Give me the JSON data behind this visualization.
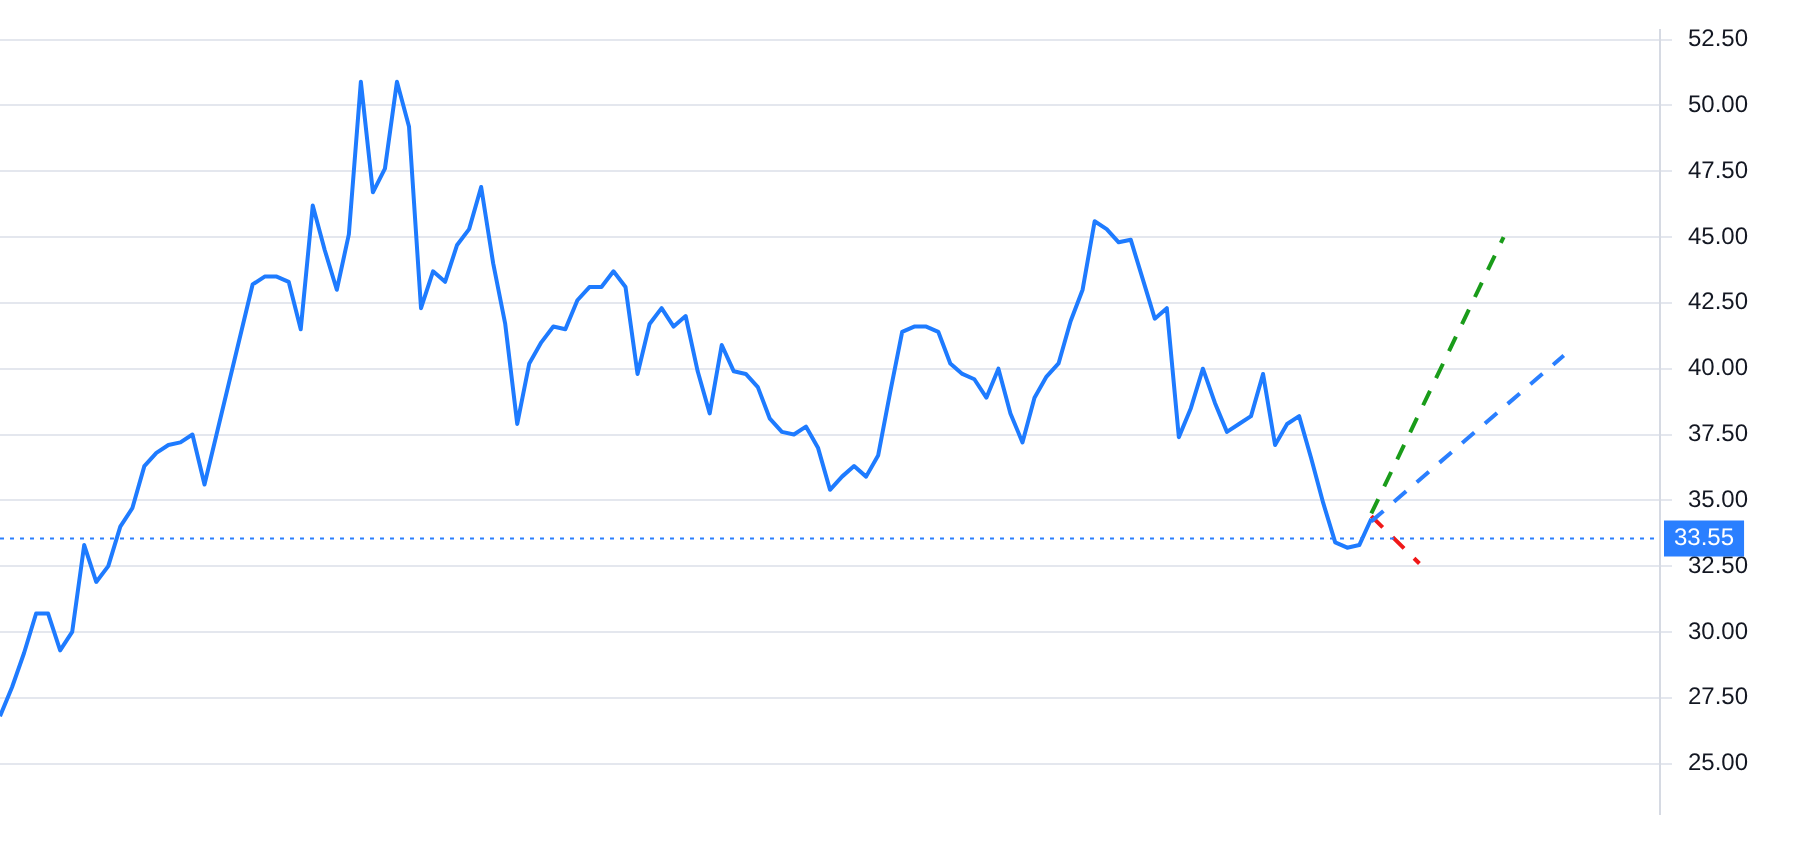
{
  "chart_data": {
    "type": "line",
    "ylim": [
      23.1,
      52.85
    ],
    "categories": [
      null,
      null,
      null,
      null,
      null,
      null,
      null,
      null,
      null,
      null,
      null,
      null,
      null,
      null,
      null,
      null,
      null,
      null,
      null,
      null,
      null,
      null,
      null,
      null,
      null,
      null,
      null,
      null,
      null,
      null,
      null,
      null,
      null,
      null,
      null,
      null,
      null,
      null,
      null,
      null,
      null,
      null,
      null,
      null,
      null,
      null,
      null,
      null,
      null,
      null,
      null,
      null,
      null,
      null,
      null,
      null,
      null,
      null,
      null,
      null,
      null,
      null,
      null,
      null,
      null,
      null,
      null,
      null,
      null,
      null,
      null,
      null,
      null,
      null,
      null,
      null,
      null,
      null,
      null,
      null,
      null,
      null,
      null,
      null,
      null,
      null,
      null,
      null,
      null,
      null,
      null,
      null,
      null,
      null,
      null,
      null,
      null,
      null,
      null,
      null,
      null,
      null,
      null,
      null,
      null,
      null,
      null,
      null,
      null,
      null,
      null,
      null,
      null,
      null,
      null,
      null,
      null,
      null,
      null,
      null,
      null,
      null,
      null,
      null,
      null,
      null,
      null,
      null,
      null,
      null,
      null,
      null,
      null,
      null,
      null,
      null,
      null,
      null,
      null
    ],
    "yticks": [
      {
        "value": 25,
        "label": "25.00"
      },
      {
        "value": 27.5,
        "label": "27.50"
      },
      {
        "value": 30,
        "label": "30.00"
      },
      {
        "value": 32.5,
        "label": "32.50"
      },
      {
        "value": 35,
        "label": "35.00"
      },
      {
        "value": 37.5,
        "label": "37.50"
      },
      {
        "value": 40,
        "label": "40.00"
      },
      {
        "value": 42.5,
        "label": "42.50"
      },
      {
        "value": 45,
        "label": "45.00"
      },
      {
        "value": 47.5,
        "label": "47.50"
      },
      {
        "value": 50,
        "label": "50.00"
      },
      {
        "value": 52.5,
        "label": "52.50"
      }
    ],
    "tick_labels": "y",
    "grid": "y",
    "legend": false,
    "marker": "none",
    "ref_lines": [
      {
        "axis": "y",
        "value": 33.55,
        "label": "33.55",
        "color": "#2a7fff",
        "line_style": "dotted"
      }
    ],
    "series": [
      {
        "color": "#1e7bff",
        "line_style": "solid",
        "values": [
          26.8,
          27.9,
          29.2,
          30.7,
          30.7,
          29.3,
          30.0,
          33.3,
          31.9,
          32.5,
          34.0,
          34.7,
          36.3,
          36.8,
          37.1,
          37.2,
          37.5,
          35.6,
          37.5,
          39.4,
          41.3,
          43.2,
          43.5,
          43.5,
          43.3,
          41.5,
          46.2,
          44.5,
          43.0,
          45.1,
          50.9,
          46.7,
          47.6,
          50.9,
          49.2,
          42.3,
          43.7,
          43.3,
          44.7,
          45.3,
          46.9,
          44.0,
          41.7,
          37.9,
          40.2,
          41.0,
          41.6,
          41.5,
          42.6,
          43.1,
          43.1,
          43.7,
          43.1,
          39.8,
          41.7,
          42.3,
          41.6,
          42.0,
          39.9,
          38.3,
          40.9,
          39.9,
          39.8,
          39.3,
          38.1,
          37.6,
          37.5,
          37.8,
          37.0,
          35.4,
          35.9,
          36.3,
          35.9,
          36.7,
          39.1,
          41.4,
          41.6,
          41.6,
          41.4,
          40.2,
          39.8,
          39.6,
          38.9,
          40.0,
          38.3,
          37.2,
          38.9,
          39.7,
          40.2,
          41.8,
          43.0,
          45.6,
          45.3,
          44.8,
          44.9,
          43.4,
          41.9,
          42.3,
          37.4,
          38.5,
          40.0,
          38.7,
          37.6,
          37.9,
          38.2,
          39.8,
          37.1,
          37.9,
          38.2,
          36.6,
          34.9,
          33.4,
          33.2,
          33.3,
          34.3,
          null,
          null,
          null,
          null,
          null,
          null,
          null,
          null,
          null,
          null,
          null,
          null,
          null,
          null,
          null,
          null,
          null,
          null,
          null,
          null,
          null,
          null,
          null,
          null
        ]
      },
      {
        "color": "#1a9c1a",
        "line_style": "dashed",
        "values": [
          null,
          null,
          null,
          null,
          null,
          null,
          null,
          null,
          null,
          null,
          null,
          null,
          null,
          null,
          null,
          null,
          null,
          null,
          null,
          null,
          null,
          null,
          null,
          null,
          null,
          null,
          null,
          null,
          null,
          null,
          null,
          null,
          null,
          null,
          null,
          null,
          null,
          null,
          null,
          null,
          null,
          null,
          null,
          null,
          null,
          null,
          null,
          null,
          null,
          null,
          null,
          null,
          null,
          null,
          null,
          null,
          null,
          null,
          null,
          null,
          null,
          null,
          null,
          null,
          null,
          null,
          null,
          null,
          null,
          null,
          null,
          null,
          null,
          null,
          null,
          null,
          null,
          null,
          null,
          null,
          null,
          null,
          null,
          null,
          null,
          null,
          null,
          null,
          null,
          null,
          null,
          null,
          null,
          null,
          null,
          null,
          null,
          null,
          null,
          null,
          null,
          null,
          null,
          null,
          null,
          null,
          null,
          null,
          null,
          null,
          null,
          null,
          null,
          null,
          34.5,
          null,
          null,
          null,
          null,
          null,
          null,
          null,
          null,
          null,
          null,
          45.0,
          null,
          null,
          null,
          null,
          null,
          null,
          null,
          null,
          null,
          null,
          null,
          null,
          null
        ]
      },
      {
        "color": "#2a7fff",
        "line_style": "dashed",
        "values": [
          null,
          null,
          null,
          null,
          null,
          null,
          null,
          null,
          null,
          null,
          null,
          null,
          null,
          null,
          null,
          null,
          null,
          null,
          null,
          null,
          null,
          null,
          null,
          null,
          null,
          null,
          null,
          null,
          null,
          null,
          null,
          null,
          null,
          null,
          null,
          null,
          null,
          null,
          null,
          null,
          null,
          null,
          null,
          null,
          null,
          null,
          null,
          null,
          null,
          null,
          null,
          null,
          null,
          null,
          null,
          null,
          null,
          null,
          null,
          null,
          null,
          null,
          null,
          null,
          null,
          null,
          null,
          null,
          null,
          null,
          null,
          null,
          null,
          null,
          null,
          null,
          null,
          null,
          null,
          null,
          null,
          null,
          null,
          null,
          null,
          null,
          null,
          null,
          null,
          null,
          null,
          null,
          null,
          null,
          null,
          null,
          null,
          null,
          null,
          null,
          null,
          null,
          null,
          null,
          null,
          null,
          null,
          null,
          null,
          null,
          null,
          null,
          null,
          null,
          34.2,
          null,
          null,
          null,
          null,
          null,
          null,
          null,
          null,
          null,
          null,
          null,
          null,
          null,
          null,
          null,
          40.5,
          null,
          null,
          null,
          null,
          null,
          null,
          null,
          null
        ]
      },
      {
        "color": "#f01818",
        "line_style": "dashed",
        "values": [
          null,
          null,
          null,
          null,
          null,
          null,
          null,
          null,
          null,
          null,
          null,
          null,
          null,
          null,
          null,
          null,
          null,
          null,
          null,
          null,
          null,
          null,
          null,
          null,
          null,
          null,
          null,
          null,
          null,
          null,
          null,
          null,
          null,
          null,
          null,
          null,
          null,
          null,
          null,
          null,
          null,
          null,
          null,
          null,
          null,
          null,
          null,
          null,
          null,
          null,
          null,
          null,
          null,
          null,
          null,
          null,
          null,
          null,
          null,
          null,
          null,
          null,
          null,
          null,
          null,
          null,
          null,
          null,
          null,
          null,
          null,
          null,
          null,
          null,
          null,
          null,
          null,
          null,
          null,
          null,
          null,
          null,
          null,
          null,
          null,
          null,
          null,
          null,
          null,
          null,
          null,
          null,
          null,
          null,
          null,
          null,
          null,
          null,
          null,
          null,
          null,
          null,
          null,
          null,
          null,
          null,
          null,
          null,
          null,
          null,
          null,
          null,
          null,
          null,
          34.4,
          null,
          null,
          null,
          32.6,
          null,
          null,
          null,
          null,
          null,
          null,
          null,
          null,
          null,
          null,
          null,
          null,
          null,
          null,
          null,
          null,
          null,
          null,
          null,
          null
        ]
      }
    ]
  }
}
